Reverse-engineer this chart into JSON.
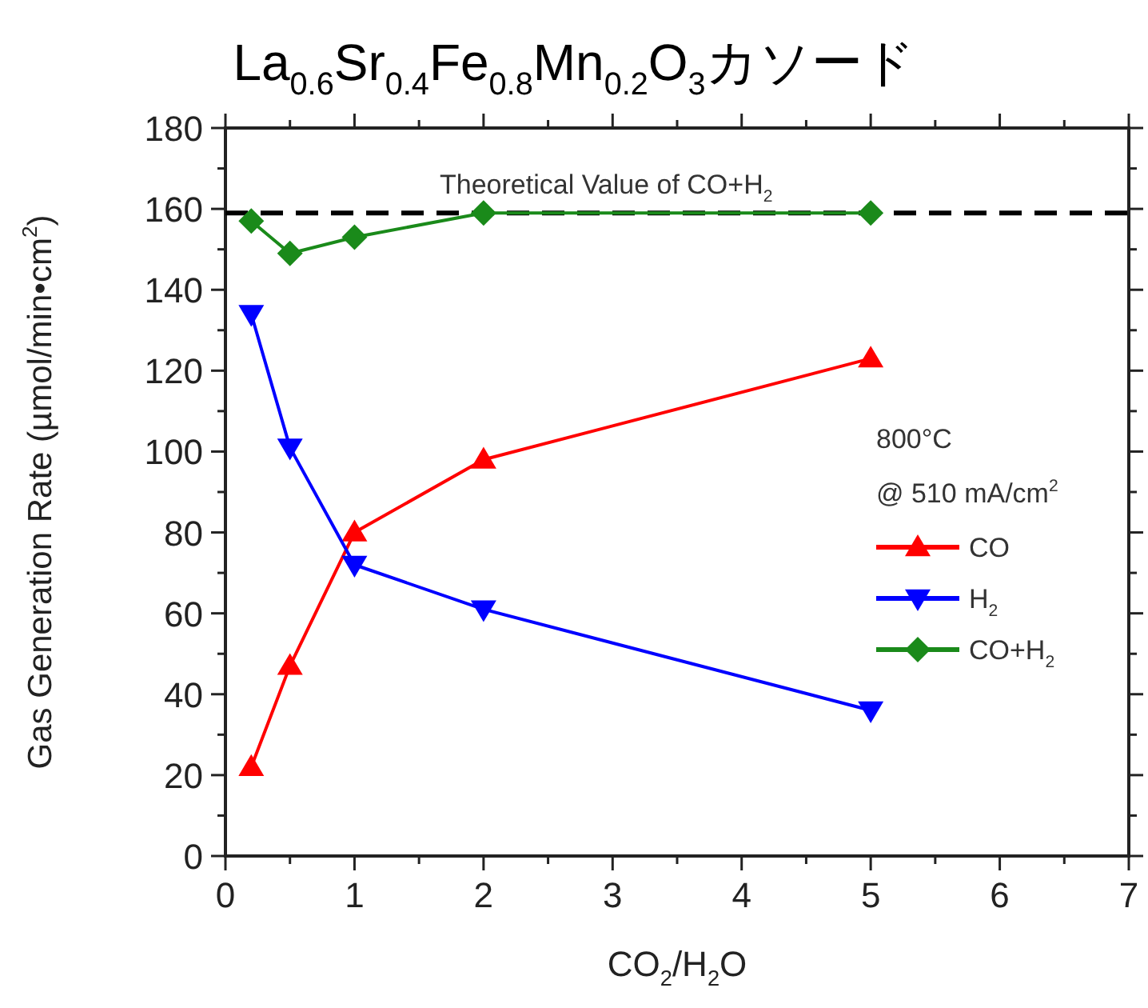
{
  "chart_data": {
    "type": "line",
    "title": "La$_{0.6}$Sr$_{0.4}$Fe$_{0.8}$Mn$_{0.2}$O$_{3}$カソード",
    "xlabel": "CO$_{2}$/H$_{2}$O",
    "ylabel": "Gas Generation Rate (µmol/min•cm$^{2}$)",
    "legend_title": "800°C\n@ 510 mA/cm$^{2}$",
    "legend": "right",
    "x": [
      0.2,
      0.5,
      1,
      2,
      5
    ],
    "series": [
      {
        "name": "CO",
        "color": "#ff0000",
        "marker": "triangle",
        "values": [
          22,
          47,
          80,
          98,
          123
        ]
      },
      {
        "name": "H$_{2}$",
        "color": "#0000ff",
        "marker": "triangle-down",
        "values": [
          134,
          101,
          72,
          61,
          36
        ]
      },
      {
        "name": "CO+H$_{2}$",
        "color": "#1a8a1a",
        "marker": "diamond",
        "values": [
          157,
          149,
          153,
          159,
          159
        ]
      }
    ],
    "ref_lines": [
      {
        "axis": "y",
        "value": 159,
        "label": "Theoretical Value of CO+H$_{2}$",
        "color": "#000000",
        "line_style": "dashed"
      }
    ],
    "xlim": [
      0,
      7
    ],
    "xticks": [
      0,
      {
        "value": 0.5,
        "label": null
      },
      1,
      {
        "value": 1.5,
        "label": null
      },
      2,
      {
        "value": 2.5,
        "label": null
      },
      3,
      {
        "value": 3.5,
        "label": null
      },
      4,
      {
        "value": 4.5,
        "label": null
      },
      5,
      {
        "value": 5.5,
        "label": null
      },
      6,
      {
        "value": 6.5,
        "label": null
      },
      7
    ],
    "ylim": [
      0,
      180
    ],
    "yticks": [
      0,
      {
        "value": 10,
        "label": null
      },
      20,
      {
        "value": 30,
        "label": null
      },
      40,
      {
        "value": 50,
        "label": null
      },
      60,
      {
        "value": 70,
        "label": null
      },
      80,
      {
        "value": 90,
        "label": null
      },
      100,
      {
        "value": 110,
        "label": null
      },
      120,
      {
        "value": 130,
        "label": null
      },
      140,
      {
        "value": 150,
        "label": null
      },
      160,
      {
        "value": 170,
        "label": null
      },
      180
    ],
    "grid": false
  }
}
